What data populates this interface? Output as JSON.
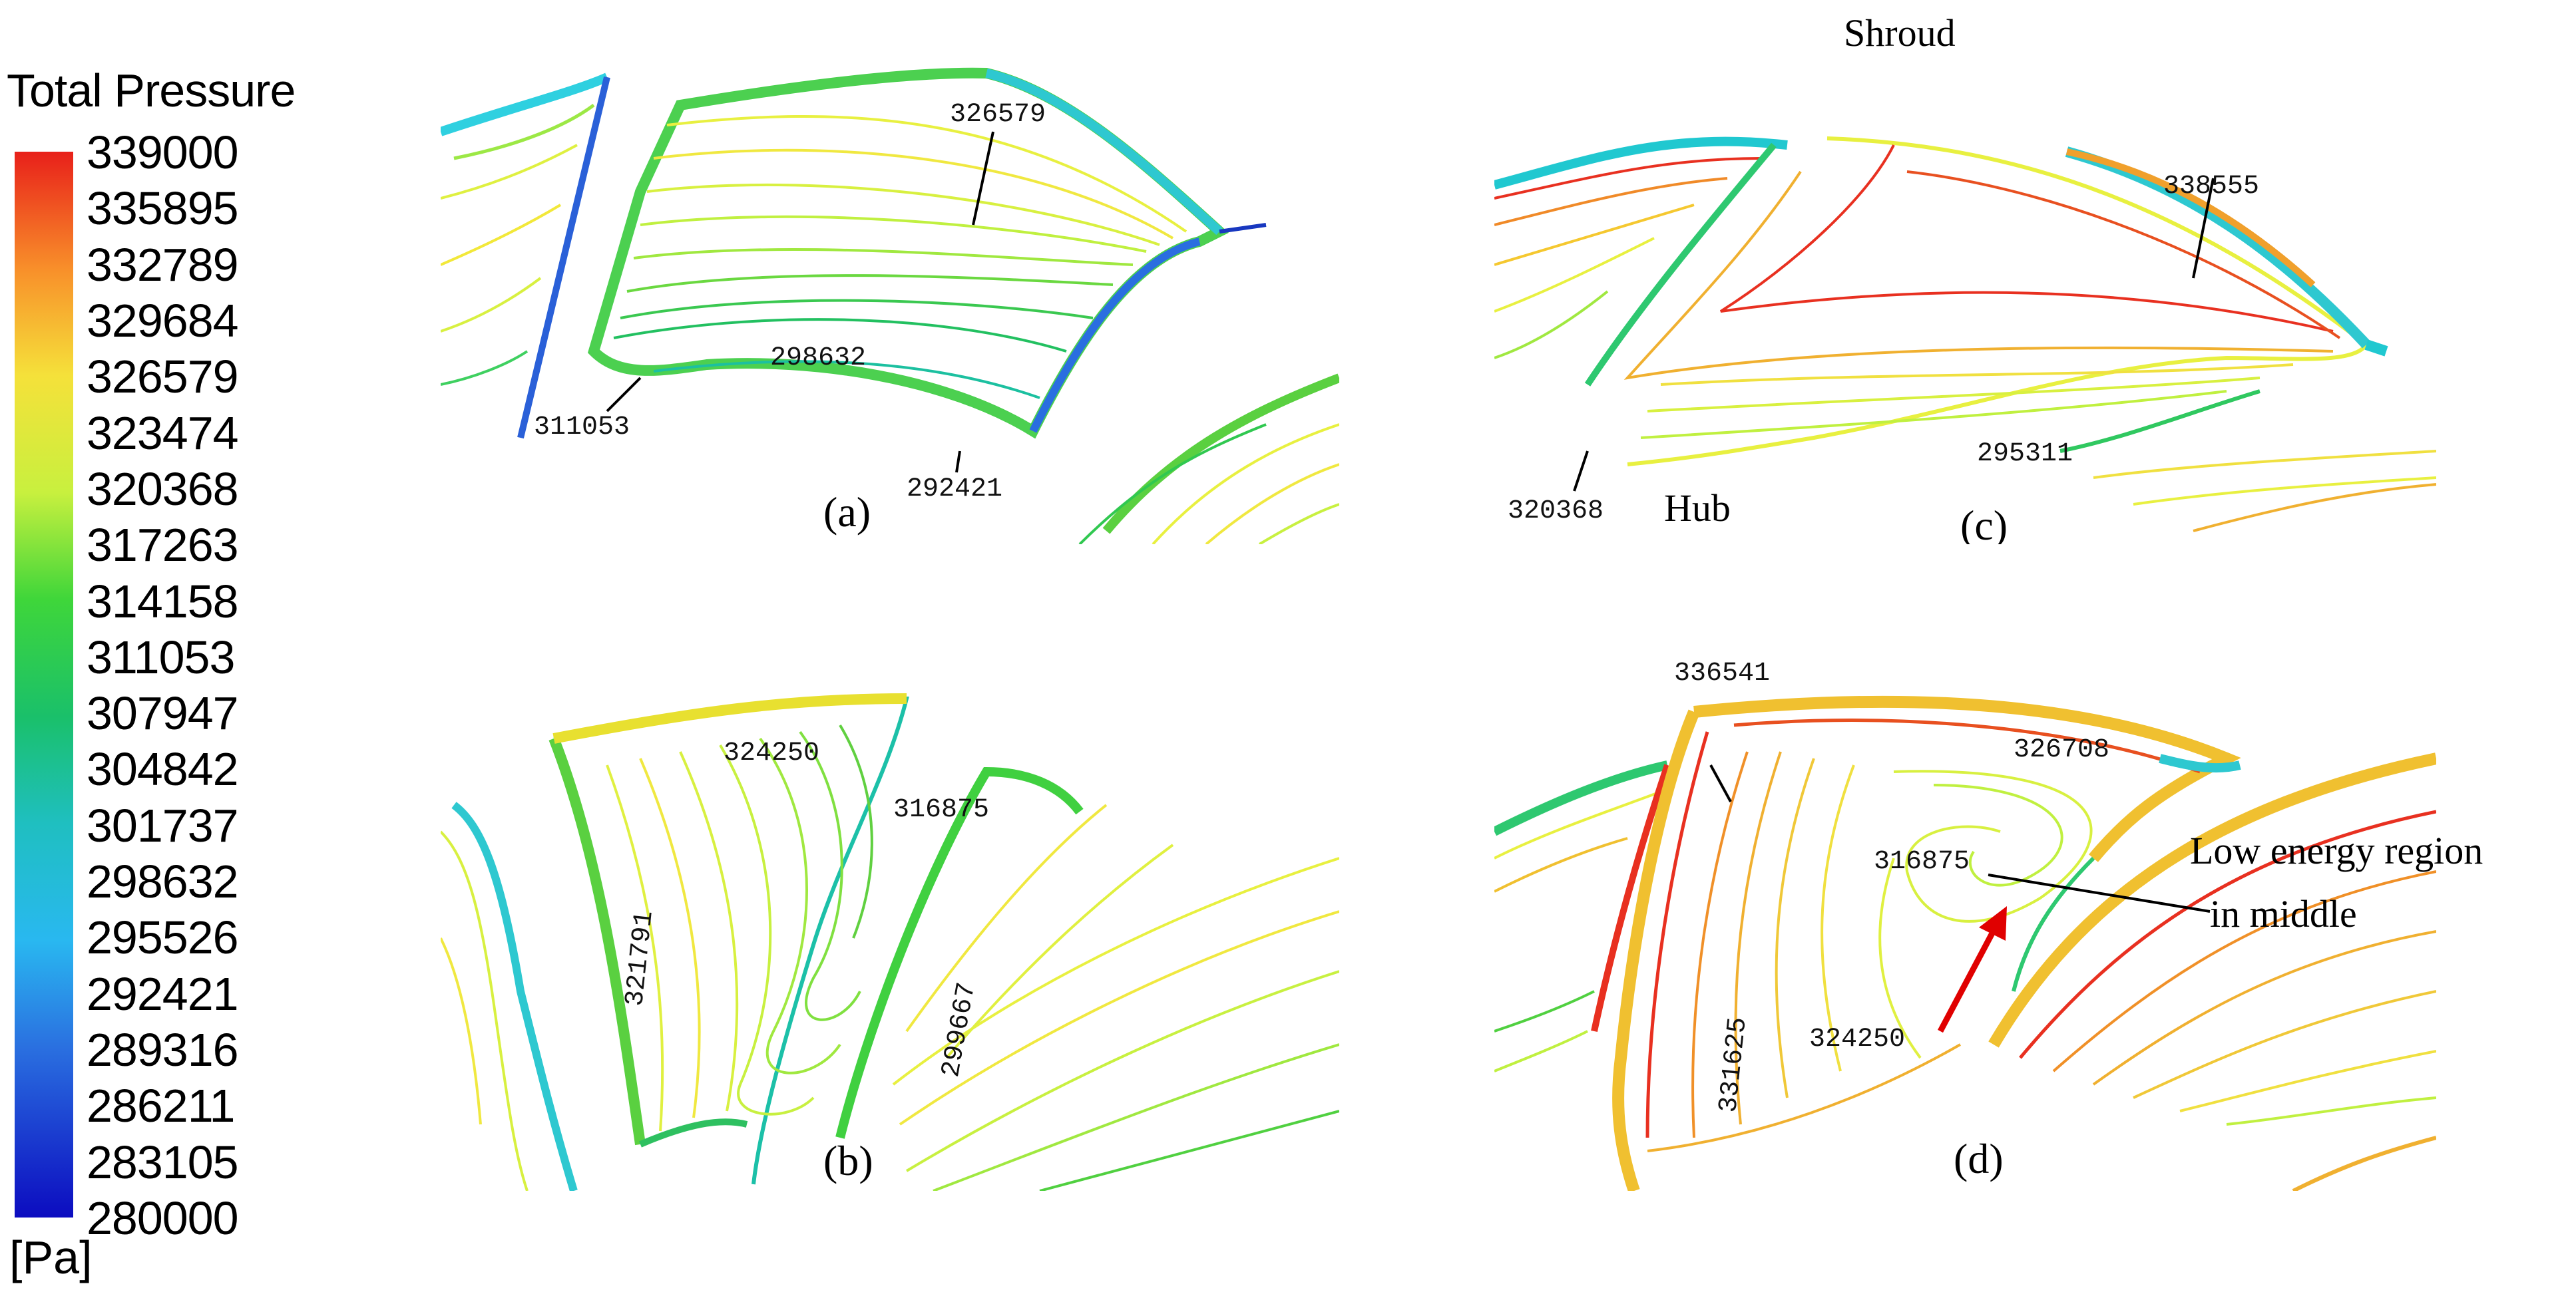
{
  "legend": {
    "title": "Total Pressure",
    "unit": "[Pa]",
    "ticks": [
      "339000",
      "335895",
      "332789",
      "329684",
      "326579",
      "323474",
      "320368",
      "317263",
      "314158",
      "311053",
      "307947",
      "304842",
      "301737",
      "298632",
      "295526",
      "292421",
      "289316",
      "286211",
      "283105",
      "280000"
    ],
    "colors": [
      "#e8201a",
      "#f25a22",
      "#f88f2a",
      "#fbbb2f",
      "#f5e13a",
      "#d6f040",
      "#a8f03a",
      "#66e33a",
      "#2ed13a",
      "#18c05a",
      "#1bbd85",
      "#1dbda8",
      "#1fbfcc",
      "#28c7ea",
      "#2aa9f0",
      "#2a7be8",
      "#2750d8",
      "#1e2ec8",
      "#1010c0"
    ]
  },
  "panels": {
    "a": {
      "label": "(a)",
      "values": [
        "326579",
        "298632",
        "311053",
        "292421"
      ]
    },
    "b": {
      "label": "(b)",
      "values": [
        "324250",
        "316875",
        "321791",
        "299667"
      ]
    },
    "c": {
      "label": "(c)",
      "values": [
        "338555",
        "320368",
        "295311"
      ],
      "shroud": "Shroud",
      "hub": "Hub"
    },
    "d": {
      "label": "(d)",
      "values": [
        "336541",
        "326708",
        "316875",
        "331625",
        "324250"
      ],
      "annotation_line1": "Low energy region",
      "annotation_line2": "in middle"
    }
  }
}
